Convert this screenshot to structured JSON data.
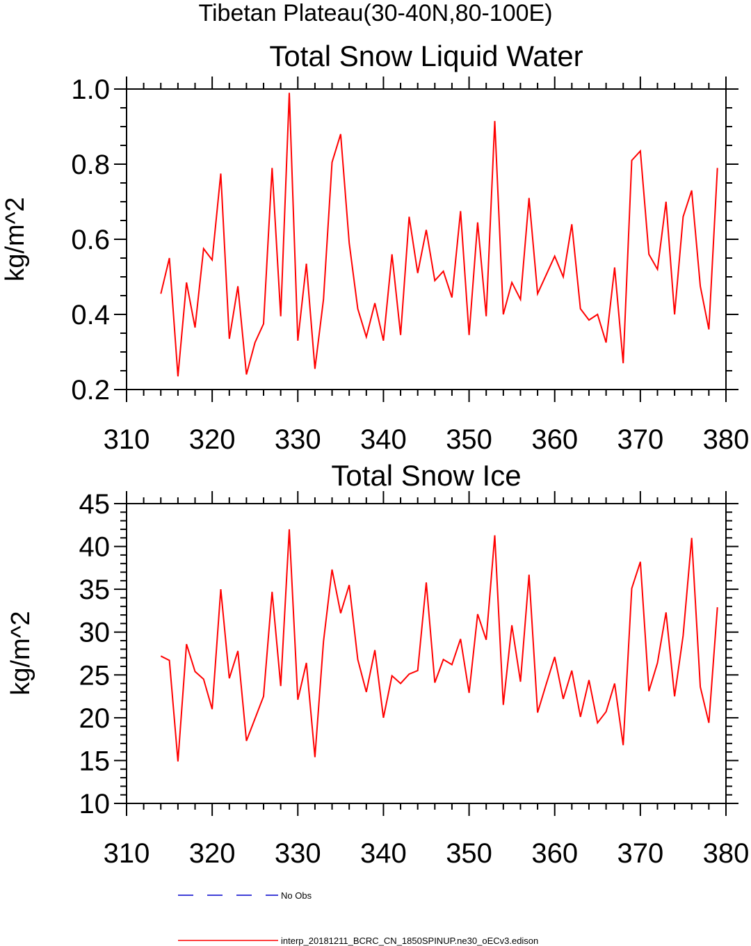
{
  "page": {
    "title": "Tibetan Plateau(30-40N,80-100E)"
  },
  "colors": {
    "model_line": "#ff0000",
    "obs_line": "#0000cc",
    "axis": "#000000"
  },
  "legend": {
    "entries": [
      {
        "label": "No Obs",
        "style": "dashed",
        "color": "#0000cc"
      },
      {
        "label": "interp_20181211_BCRC_CN_1850SPINUP.ne30_oECv3.edison",
        "style": "solid",
        "color": "#ff0000"
      }
    ]
  },
  "chart_data": [
    {
      "type": "line",
      "title": "Total Snow Liquid Water",
      "ylabel": "kg/m^2",
      "xlabel": "",
      "xlim": [
        310,
        380
      ],
      "ylim": [
        0.2,
        1.0
      ],
      "xticks": [
        310,
        320,
        330,
        340,
        350,
        360,
        370,
        380
      ],
      "xtick_labels": [
        "310",
        "320",
        "330",
        "340",
        "350",
        "360",
        "370",
        "380"
      ],
      "yticks": [
        0.2,
        0.4,
        0.6,
        0.8,
        1.0
      ],
      "ytick_labels": [
        "0.2",
        "0.4",
        "0.6",
        "0.8",
        "1.0"
      ],
      "grid": false,
      "x": [
        314,
        315,
        316,
        317,
        318,
        319,
        320,
        321,
        322,
        323,
        324,
        325,
        326,
        327,
        328,
        329,
        330,
        331,
        332,
        333,
        334,
        335,
        336,
        337,
        338,
        339,
        340,
        341,
        342,
        343,
        344,
        345,
        346,
        347,
        348,
        349,
        350,
        351,
        352,
        353,
        354,
        355,
        356,
        357,
        358,
        359,
        360,
        361,
        362,
        363,
        364,
        365,
        366,
        367,
        368,
        369,
        370,
        371,
        372,
        373,
        374,
        375,
        376,
        377,
        378,
        379
      ],
      "series": [
        {
          "values": [
            0.455,
            0.55,
            0.235,
            0.485,
            0.365,
            0.575,
            0.545,
            0.775,
            0.335,
            0.475,
            0.24,
            0.325,
            0.375,
            0.79,
            0.395,
            0.99,
            0.33,
            0.535,
            0.255,
            0.44,
            0.805,
            0.88,
            0.59,
            0.415,
            0.34,
            0.43,
            0.33,
            0.56,
            0.345,
            0.66,
            0.51,
            0.625,
            0.49,
            0.515,
            0.445,
            0.675,
            0.345,
            0.645,
            0.395,
            0.915,
            0.4,
            0.485,
            0.44,
            0.71,
            0.455,
            0.505,
            0.555,
            0.5,
            0.64,
            0.415,
            0.385,
            0.4,
            0.325,
            0.525,
            0.27,
            0.81,
            0.835,
            0.56,
            0.52,
            0.7,
            0.4,
            0.66,
            0.73,
            0.475,
            0.36,
            0.79
          ]
        }
      ]
    },
    {
      "type": "line",
      "title": "Total Snow Ice",
      "ylabel": "kg/m^2",
      "xlabel": "",
      "xlim": [
        310,
        380
      ],
      "ylim": [
        10,
        45
      ],
      "xticks": [
        310,
        320,
        330,
        340,
        350,
        360,
        370,
        380
      ],
      "xtick_labels": [
        "310",
        "320",
        "330",
        "340",
        "350",
        "360",
        "370",
        "380"
      ],
      "yticks": [
        10,
        15,
        20,
        25,
        30,
        35,
        40,
        45
      ],
      "ytick_labels": [
        "10",
        "15",
        "20",
        "25",
        "30",
        "35",
        "40",
        "45"
      ],
      "grid": false,
      "x": [
        314,
        315,
        316,
        317,
        318,
        319,
        320,
        321,
        322,
        323,
        324,
        325,
        326,
        327,
        328,
        329,
        330,
        331,
        332,
        333,
        334,
        335,
        336,
        337,
        338,
        339,
        340,
        341,
        342,
        343,
        344,
        345,
        346,
        347,
        348,
        349,
        350,
        351,
        352,
        353,
        354,
        355,
        356,
        357,
        358,
        359,
        360,
        361,
        362,
        363,
        364,
        365,
        366,
        367,
        368,
        369,
        370,
        371,
        372,
        373,
        374,
        375,
        376,
        377,
        378,
        379
      ],
      "series": [
        {
          "values": [
            27.2,
            26.7,
            14.9,
            28.6,
            25.4,
            24.5,
            21.0,
            35.0,
            24.6,
            27.8,
            17.3,
            19.9,
            22.5,
            34.7,
            23.7,
            42.0,
            22.1,
            26.4,
            15.4,
            28.9,
            37.3,
            32.2,
            35.5,
            26.8,
            23.0,
            27.9,
            20.0,
            24.9,
            24.0,
            25.1,
            25.5,
            35.8,
            24.1,
            26.8,
            26.2,
            29.2,
            22.9,
            32.1,
            29.1,
            41.3,
            21.5,
            30.8,
            24.2,
            36.7,
            20.6,
            23.9,
            27.1,
            22.2,
            25.5,
            20.1,
            24.4,
            19.4,
            20.7,
            24.0,
            16.8,
            35.1,
            38.2,
            23.1,
            26.4,
            32.3,
            22.5,
            29.6,
            41.0,
            23.6,
            19.4,
            32.9
          ]
        }
      ]
    }
  ]
}
